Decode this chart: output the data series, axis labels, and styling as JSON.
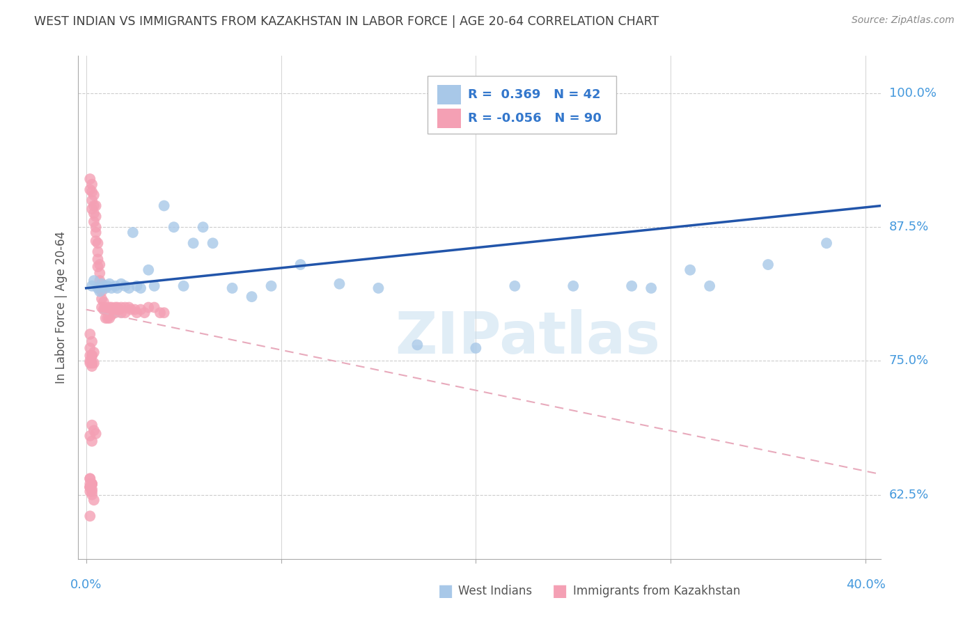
{
  "title": "WEST INDIAN VS IMMIGRANTS FROM KAZAKHSTAN IN LABOR FORCE | AGE 20-64 CORRELATION CHART",
  "source": "Source: ZipAtlas.com",
  "ylabel": "In Labor Force | Age 20-64",
  "xlim": [
    -0.004,
    0.408
  ],
  "ylim": [
    0.565,
    1.035
  ],
  "xtick_positions": [
    0.0,
    0.1,
    0.2,
    0.3,
    0.4
  ],
  "ytick_positions": [
    0.625,
    0.75,
    0.875,
    1.0
  ],
  "yticklabels": [
    "62.5%",
    "75.0%",
    "87.5%",
    "100.0%"
  ],
  "R_blue": 0.369,
  "N_blue": 42,
  "R_pink": -0.056,
  "N_pink": 90,
  "blue_color": "#A8C8E8",
  "pink_color": "#F4A0B4",
  "blue_line_color": "#2255AA",
  "pink_line_color": "#E8AABC",
  "grid_color": "#CCCCCC",
  "title_color": "#404040",
  "axis_label_color": "#4499DD",
  "watermark_text": "ZIPatlas",
  "watermark_color": "#C8DFF0",
  "legend_text_color": "#3377CC",
  "blue_line_x0": 0.0,
  "blue_line_y0": 0.818,
  "blue_line_x1": 0.408,
  "blue_line_y1": 0.895,
  "pink_line_x0": 0.0,
  "pink_line_y0": 0.798,
  "pink_line_x1": 0.408,
  "pink_line_y1": 0.644,
  "blue_scatter_x": [
    0.003,
    0.004,
    0.006,
    0.007,
    0.008,
    0.009,
    0.01,
    0.011,
    0.012,
    0.013,
    0.015,
    0.016,
    0.018,
    0.02,
    0.022,
    0.024,
    0.026,
    0.028,
    0.032,
    0.035,
    0.04,
    0.045,
    0.05,
    0.055,
    0.06,
    0.065,
    0.075,
    0.085,
    0.095,
    0.11,
    0.13,
    0.15,
    0.17,
    0.2,
    0.22,
    0.25,
    0.28,
    0.31,
    0.35,
    0.38,
    0.32,
    0.29
  ],
  "blue_scatter_y": [
    0.82,
    0.825,
    0.818,
    0.815,
    0.822,
    0.82,
    0.818,
    0.82,
    0.822,
    0.818,
    0.82,
    0.818,
    0.822,
    0.82,
    0.818,
    0.87,
    0.82,
    0.818,
    0.835,
    0.82,
    0.895,
    0.875,
    0.82,
    0.86,
    0.875,
    0.86,
    0.818,
    0.81,
    0.82,
    0.84,
    0.822,
    0.818,
    0.765,
    0.762,
    0.82,
    0.82,
    0.82,
    0.835,
    0.84,
    0.86,
    0.82,
    0.818
  ],
  "pink_scatter_x": [
    0.002,
    0.002,
    0.003,
    0.003,
    0.003,
    0.003,
    0.004,
    0.004,
    0.004,
    0.004,
    0.005,
    0.005,
    0.005,
    0.005,
    0.005,
    0.006,
    0.006,
    0.006,
    0.006,
    0.007,
    0.007,
    0.007,
    0.007,
    0.008,
    0.008,
    0.008,
    0.008,
    0.009,
    0.009,
    0.01,
    0.01,
    0.01,
    0.011,
    0.011,
    0.012,
    0.012,
    0.012,
    0.013,
    0.013,
    0.014,
    0.015,
    0.015,
    0.016,
    0.017,
    0.018,
    0.018,
    0.02,
    0.02,
    0.022,
    0.023,
    0.025,
    0.026,
    0.028,
    0.03,
    0.032,
    0.035,
    0.038,
    0.04,
    0.002,
    0.003,
    0.002,
    0.003,
    0.002,
    0.003,
    0.004,
    0.002,
    0.003,
    0.004,
    0.002,
    0.003,
    0.003,
    0.004,
    0.005,
    0.002,
    0.003,
    0.002,
    0.003,
    0.002,
    0.003,
    0.002,
    0.003,
    0.002,
    0.002,
    0.003,
    0.002,
    0.003,
    0.004,
    0.002,
    0.003,
    0.002
  ],
  "pink_scatter_y": [
    0.92,
    0.91,
    0.915,
    0.908,
    0.9,
    0.892,
    0.905,
    0.895,
    0.888,
    0.88,
    0.895,
    0.885,
    0.875,
    0.87,
    0.862,
    0.86,
    0.852,
    0.845,
    0.838,
    0.84,
    0.832,
    0.825,
    0.818,
    0.822,
    0.815,
    0.808,
    0.8,
    0.805,
    0.798,
    0.8,
    0.798,
    0.79,
    0.798,
    0.79,
    0.8,
    0.798,
    0.79,
    0.8,
    0.793,
    0.798,
    0.8,
    0.795,
    0.8,
    0.798,
    0.8,
    0.795,
    0.8,
    0.795,
    0.8,
    0.798,
    0.798,
    0.795,
    0.798,
    0.795,
    0.8,
    0.8,
    0.795,
    0.795,
    0.775,
    0.768,
    0.762,
    0.755,
    0.748,
    0.755,
    0.748,
    0.755,
    0.748,
    0.758,
    0.75,
    0.745,
    0.69,
    0.685,
    0.682,
    0.68,
    0.675,
    0.64,
    0.635,
    0.632,
    0.628,
    0.64,
    0.635,
    0.632,
    0.628,
    0.635,
    0.632,
    0.625,
    0.62,
    0.635,
    0.63,
    0.605
  ]
}
